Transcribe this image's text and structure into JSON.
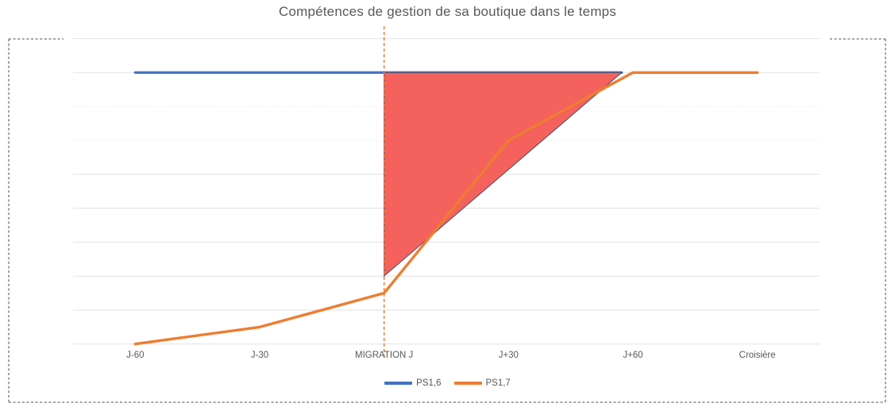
{
  "chart": {
    "title": "Compétences de gestion de sa boutique dans le temps",
    "legend_position": "bottom",
    "text_color": "#595959",
    "background": "#ffffff"
  },
  "chart_data": {
    "type": "line",
    "title": "Compétences de gestion de sa boutique dans le temps",
    "categories": [
      "J-60",
      "J-30",
      "MIGRATION J",
      "J+30",
      "J+60",
      "Croisière"
    ],
    "series": [
      {
        "name": "PS1,6",
        "color": "#4472C4",
        "values": [
          1.6,
          1.6,
          1.6,
          1.6,
          1.6,
          null
        ],
        "draw_end_index": 3.91
      },
      {
        "name": "PS1,7",
        "color": "#ED7D31",
        "values": [
          0,
          0.1,
          0.3,
          1.2,
          1.6,
          1.6
        ]
      }
    ],
    "xlabel": "",
    "ylabel": "",
    "ylim": [
      0,
      1.8
    ],
    "gridline_step": 0.2,
    "y_tick_labels_visible": false,
    "grid": true,
    "legend_position": "bottom",
    "annotations": {
      "migration_vline": {
        "at_category": "MIGRATION J",
        "category_index": 2,
        "color": "#ED7D31",
        "style": "dashed"
      },
      "gap_triangle": {
        "vertices_category_value": [
          [
            2.0,
            1.6
          ],
          [
            3.91,
            1.6
          ],
          [
            2.0,
            0.4
          ]
        ],
        "fill": "#F5615C",
        "stroke": "#44546A"
      }
    }
  }
}
